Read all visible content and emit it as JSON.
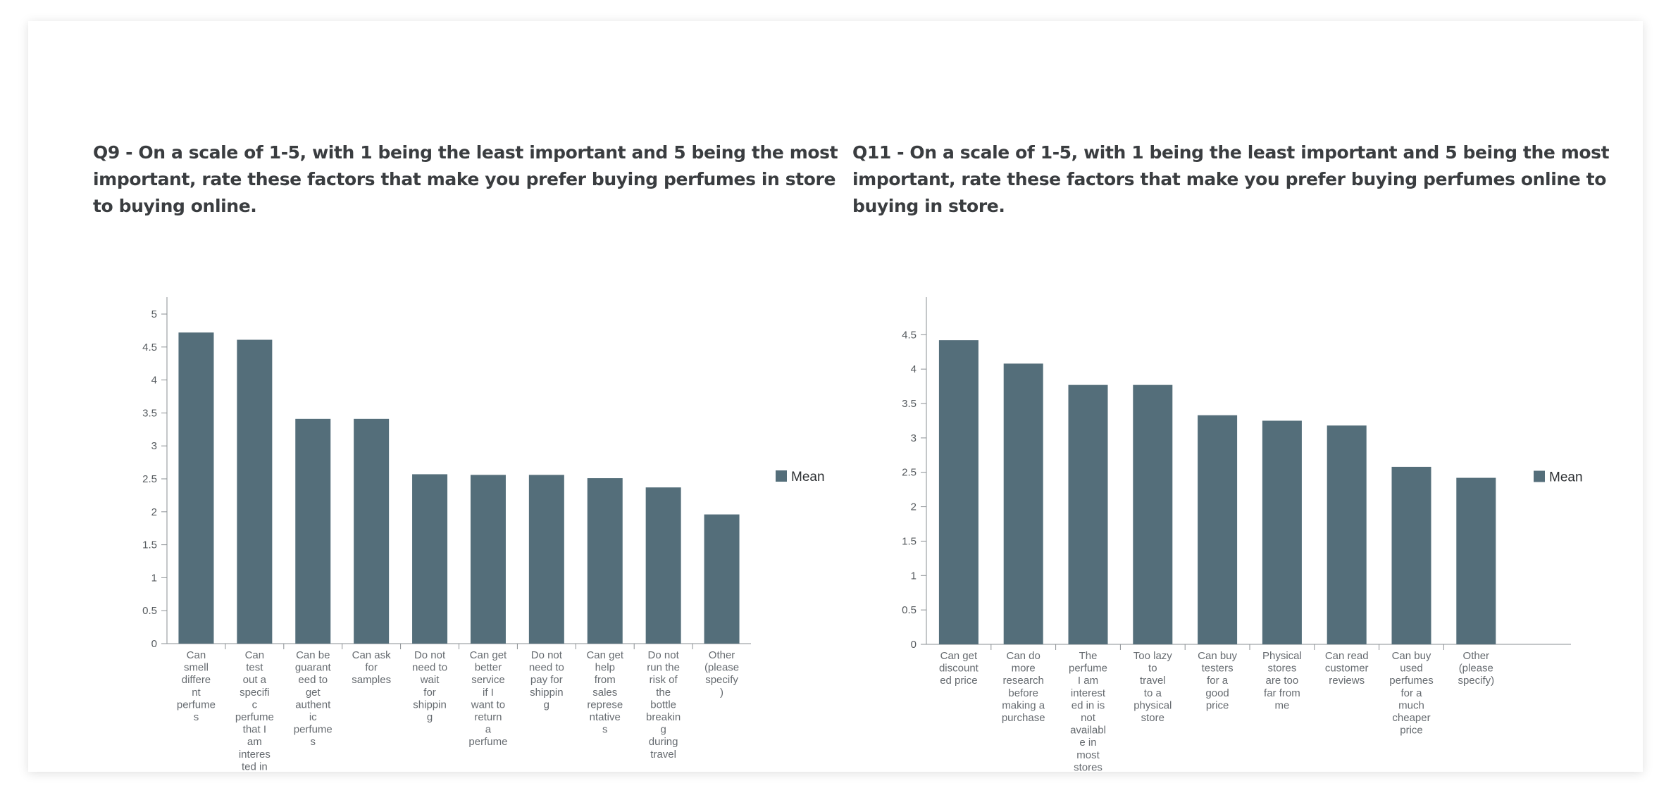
{
  "colors": {
    "bar": "#546e7a",
    "axis": "#8a8f93",
    "text": "#3a3d40"
  },
  "chart_data": [
    {
      "type": "bar",
      "title": "Q9 - On a scale of 1-5, with 1 being the least important and 5 being the most important, rate these factors that make you prefer buying perfumes in store to buying online.",
      "legend": "Mean",
      "legend_position": "right",
      "grid": false,
      "ylim": [
        0,
        5
      ],
      "yticks": [
        0,
        0.5,
        1,
        1.5,
        2,
        2.5,
        3,
        3.5,
        4,
        4.5,
        5
      ],
      "categories": [
        "Can smell differe nt perfume s",
        "Can test out a specifi c perfume that I am interes ted in",
        "Can be guarant eed to get authent ic perfume s",
        "Can ask for samples",
        "Do not need to wait for shippin g",
        "Can get better service if I want to return a perfume",
        "Do not need to pay for shippin g",
        "Can get help from sales represe ntative s",
        "Do not run the risk of the bottle breakin g during travel",
        "Other (please specify )"
      ],
      "category_lines": [
        [
          "Can",
          "smell",
          "differe",
          "nt",
          "perfume",
          "s"
        ],
        [
          "Can",
          "test",
          "out a",
          "specifi",
          "c",
          "perfume",
          "that I",
          "am",
          "interes",
          "ted in"
        ],
        [
          "Can be",
          "guarant",
          "eed to",
          "get",
          "authent",
          "ic",
          "perfume",
          "s"
        ],
        [
          "Can ask",
          "for",
          "samples"
        ],
        [
          "Do not",
          "need to",
          "wait",
          "for",
          "shippin",
          "g"
        ],
        [
          "Can get",
          "better",
          "service",
          "if I",
          "want to",
          "return",
          "a",
          "perfume"
        ],
        [
          "Do not",
          "need to",
          "pay for",
          "shippin",
          "g"
        ],
        [
          "Can get",
          "help",
          "from",
          "sales",
          "represe",
          "ntative",
          "s"
        ],
        [
          "Do not",
          "run the",
          "risk of",
          "the",
          "bottle",
          "breakin",
          "g",
          "during",
          "travel"
        ],
        [
          "Other",
          "(please",
          "specify",
          ")"
        ]
      ],
      "series": [
        {
          "name": "Mean",
          "values": [
            4.72,
            4.61,
            3.41,
            3.41,
            2.57,
            2.56,
            2.56,
            2.51,
            2.37,
            1.96
          ]
        }
      ]
    },
    {
      "type": "bar",
      "title": "Q11 - On a scale of 1-5, with 1 being the least important and 5 being the most important, rate these factors that make you prefer buying perfumes online to buying in store.",
      "legend": "Mean",
      "legend_position": "right",
      "grid": false,
      "ylim": [
        0,
        4.8
      ],
      "yticks": [
        0,
        0.5,
        1,
        1.5,
        2,
        2.5,
        3,
        3.5,
        4,
        4.5
      ],
      "categories": [
        "Can get discount ed price",
        "Can do more research before making a purchase",
        "The perfume I am interest ed in is not availabl e in most stores",
        "Too lazy to travel to a physical store",
        "Can buy testers for a good price",
        "Physical stores are too far from me",
        "Can read customer reviews",
        "Can buy used perfumes for a much cheaper price",
        "Other (please specify)"
      ],
      "category_lines": [
        [
          "Can get",
          "discount",
          "ed price"
        ],
        [
          "Can do",
          "more",
          "research",
          "before",
          "making a",
          "purchase"
        ],
        [
          "The",
          "perfume",
          "I am",
          "interest",
          "ed in is",
          "not",
          "availabl",
          "e in",
          "most",
          "stores"
        ],
        [
          "Too lazy",
          "to",
          "travel",
          "to a",
          "physical",
          "store"
        ],
        [
          "Can buy",
          "testers",
          "for a",
          "good",
          "price"
        ],
        [
          "Physical",
          "stores",
          "are too",
          "far from",
          "me"
        ],
        [
          "Can read",
          "customer",
          "reviews"
        ],
        [
          "Can buy",
          "used",
          "perfumes",
          "for a",
          "much",
          "cheaper",
          "price"
        ],
        [
          "Other",
          "(please",
          "specify)"
        ]
      ],
      "series": [
        {
          "name": "Mean",
          "values": [
            4.42,
            4.08,
            3.77,
            3.77,
            3.33,
            3.25,
            3.18,
            2.58,
            2.42
          ]
        }
      ]
    }
  ]
}
